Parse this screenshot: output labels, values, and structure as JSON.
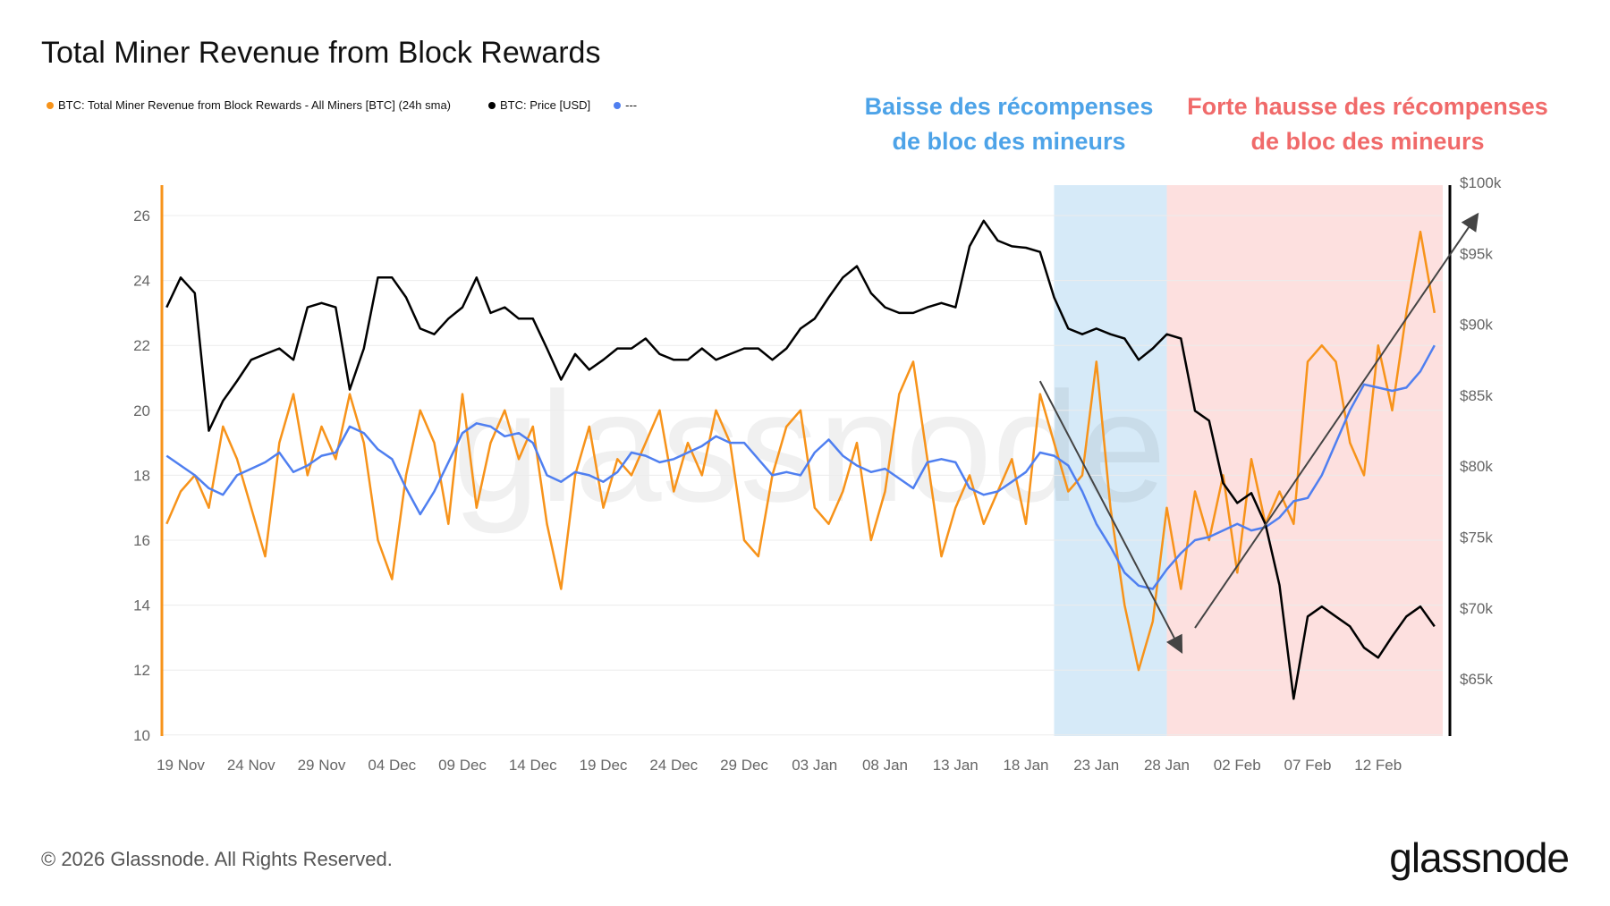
{
  "chart_data": {
    "type": "line",
    "title": "Total Miner Revenue from Block Rewards",
    "legend_placement": "top-left",
    "grid": true,
    "x": [
      "2025-11-18",
      "2025-11-19",
      "2025-11-20",
      "2025-11-21",
      "2025-11-22",
      "2025-11-23",
      "2025-11-24",
      "2025-11-25",
      "2025-11-26",
      "2025-11-27",
      "2025-11-28",
      "2025-11-29",
      "2025-11-30",
      "2025-12-01",
      "2025-12-02",
      "2025-12-03",
      "2025-12-04",
      "2025-12-05",
      "2025-12-06",
      "2025-12-07",
      "2025-12-08",
      "2025-12-09",
      "2025-12-10",
      "2025-12-11",
      "2025-12-12",
      "2025-12-13",
      "2025-12-14",
      "2025-12-15",
      "2025-12-16",
      "2025-12-17",
      "2025-12-18",
      "2025-12-19",
      "2025-12-20",
      "2025-12-21",
      "2025-12-22",
      "2025-12-23",
      "2025-12-24",
      "2025-12-25",
      "2025-12-26",
      "2025-12-27",
      "2025-12-28",
      "2025-12-29",
      "2025-12-30",
      "2025-12-31",
      "2026-01-01",
      "2026-01-02",
      "2026-01-03",
      "2026-01-04",
      "2026-01-05",
      "2026-01-06",
      "2026-01-07",
      "2026-01-08",
      "2026-01-09",
      "2026-01-10",
      "2026-01-11",
      "2026-01-12",
      "2026-01-13",
      "2026-01-14",
      "2026-01-15",
      "2026-01-16",
      "2026-01-17",
      "2026-01-18",
      "2026-01-19",
      "2026-01-20",
      "2026-01-21",
      "2026-01-22",
      "2026-01-23",
      "2026-01-24",
      "2026-01-25",
      "2026-01-26",
      "2026-01-27",
      "2026-01-28",
      "2026-01-29",
      "2026-01-30",
      "2026-01-31",
      "2026-02-01",
      "2026-02-02",
      "2026-02-03",
      "2026-02-04",
      "2026-02-05",
      "2026-02-06",
      "2026-02-07",
      "2026-02-08",
      "2026-02-09",
      "2026-02-10",
      "2026-02-11",
      "2026-02-12",
      "2026-02-13",
      "2026-02-14",
      "2026-02-15",
      "2026-02-16"
    ],
    "x_range": [
      "2025-11-17",
      "2026-02-17"
    ],
    "x_ticks": [
      {
        "date": "2025-11-19",
        "label": "19 Nov"
      },
      {
        "date": "2025-11-24",
        "label": "24 Nov"
      },
      {
        "date": "2025-11-29",
        "label": "29 Nov"
      },
      {
        "date": "2025-12-04",
        "label": "04 Dec"
      },
      {
        "date": "2025-12-09",
        "label": "09 Dec"
      },
      {
        "date": "2025-12-14",
        "label": "14 Dec"
      },
      {
        "date": "2025-12-19",
        "label": "19 Dec"
      },
      {
        "date": "2025-12-24",
        "label": "24 Dec"
      },
      {
        "date": "2025-12-29",
        "label": "29 Dec"
      },
      {
        "date": "2026-01-03",
        "label": "03 Jan"
      },
      {
        "date": "2026-01-08",
        "label": "08 Jan"
      },
      {
        "date": "2026-01-13",
        "label": "13 Jan"
      },
      {
        "date": "2026-01-18",
        "label": "18 Jan"
      },
      {
        "date": "2026-01-23",
        "label": "23 Jan"
      },
      {
        "date": "2026-01-28",
        "label": "28 Jan"
      },
      {
        "date": "2026-02-02",
        "label": "02 Feb"
      },
      {
        "date": "2026-02-07",
        "label": "07 Feb"
      },
      {
        "date": "2026-02-12",
        "label": "12 Feb"
      }
    ],
    "y_left": {
      "range": [
        10,
        26.95
      ],
      "ticks": [
        10,
        12,
        14,
        16,
        18,
        20,
        22,
        24,
        26
      ],
      "tick_labels": [
        "10",
        "12",
        "14",
        "16",
        "18",
        "20",
        "22",
        "24",
        "26"
      ],
      "color": "#f7931a"
    },
    "y_right": {
      "range": [
        61.9,
        100
      ],
      "ticks": [
        65,
        70,
        75,
        80,
        85,
        90,
        95,
        100
      ],
      "tick_labels": [
        "$65k",
        "$70k",
        "$75k",
        "$80k",
        "$85k",
        "$90k",
        "$95k",
        "$100k"
      ],
      "unit": "USD thousands",
      "color": "#000000"
    },
    "series": [
      {
        "name": "BTC: Total Miner Revenue from Block Rewards - All Miners [BTC] (24h sma)",
        "axis": "left",
        "color": "#f7931a",
        "values": [
          16.5,
          17.5,
          18,
          17,
          19.5,
          18.5,
          17,
          15.5,
          19,
          20.5,
          18,
          19.5,
          18.5,
          20.5,
          19,
          16,
          14.8,
          18,
          20,
          19,
          16.5,
          20.5,
          17,
          19,
          20,
          18.5,
          19.5,
          16.5,
          14.5,
          18,
          19.5,
          17,
          18.5,
          18,
          19,
          20,
          17.5,
          19,
          18,
          20,
          19,
          16,
          15.5,
          18,
          19.5,
          20,
          17,
          16.5,
          17.5,
          19,
          16,
          17.5,
          20.5,
          21.5,
          18.5,
          15.5,
          17,
          18,
          16.5,
          17.5,
          18.5,
          16.5,
          20.5,
          19,
          17.5,
          18,
          21.5,
          17,
          14,
          12,
          13.5,
          17,
          14.5,
          17.5,
          16,
          18,
          15,
          18.5,
          16.5,
          17.5,
          16.5,
          21.5,
          22,
          21.5,
          19,
          18,
          22,
          20,
          23,
          25.5,
          23
        ]
      },
      {
        "name": "BTC: Price [USD]",
        "axis": "right",
        "color": "#000000",
        "values": [
          91.2,
          93.3,
          92.2,
          82.5,
          84.6,
          86,
          87.5,
          87.9,
          88.3,
          87.5,
          91.2,
          91.5,
          91.2,
          85.4,
          88.3,
          93.3,
          93.3,
          91.9,
          89.7,
          89.3,
          90.4,
          91.2,
          93.3,
          90.8,
          91.2,
          90.4,
          90.4,
          88.3,
          86.1,
          87.9,
          86.8,
          87.5,
          88.3,
          88.3,
          89,
          87.9,
          87.5,
          87.5,
          88.3,
          87.5,
          87.9,
          88.3,
          88.3,
          87.5,
          88.3,
          89.7,
          90.4,
          91.9,
          93.3,
          94.1,
          92.2,
          91.2,
          90.8,
          90.8,
          91.2,
          91.5,
          91.2,
          95.5,
          97.3,
          95.9,
          95.5,
          95.4,
          95.1,
          91.9,
          89.7,
          89.3,
          89.7,
          89.3,
          89,
          87.5,
          88.3,
          89.3,
          89,
          83.9,
          83.2,
          78.8,
          77.4,
          78.1,
          75.9,
          71.6,
          63.6,
          69.4,
          70.1,
          69.4,
          68.7,
          67.2,
          66.5,
          68,
          69.4,
          70.1,
          68.7
        ]
      },
      {
        "name": "---",
        "axis": "left",
        "color": "#4f7ff0",
        "values": [
          18.6,
          18.3,
          18,
          17.6,
          17.4,
          18,
          18.2,
          18.4,
          18.7,
          18.1,
          18.3,
          18.6,
          18.7,
          19.5,
          19.3,
          18.8,
          18.5,
          17.6,
          16.8,
          17.5,
          18.4,
          19.3,
          19.6,
          19.5,
          19.2,
          19.3,
          19.0,
          18.0,
          17.8,
          18.1,
          18.0,
          17.8,
          18.1,
          18.7,
          18.6,
          18.4,
          18.5,
          18.7,
          18.9,
          19.2,
          19.0,
          19.0,
          18.5,
          18.0,
          18.1,
          18.0,
          18.7,
          19.1,
          18.6,
          18.3,
          18.1,
          18.2,
          17.9,
          17.6,
          18.4,
          18.5,
          18.4,
          17.6,
          17.4,
          17.5,
          17.8,
          18.1,
          18.7,
          18.6,
          18.3,
          17.5,
          16.5,
          15.8,
          15.0,
          14.6,
          14.5,
          15.1,
          15.6,
          16.0,
          16.1,
          16.3,
          16.5,
          16.3,
          16.4,
          16.7,
          17.2,
          17.3,
          18.0,
          19.0,
          20.0,
          20.8,
          20.7,
          20.6,
          20.7,
          21.2,
          22.0
        ]
      }
    ],
    "regions": [
      {
        "from": "2026-01-20",
        "to": "2026-01-28",
        "color": "#d6eaf8",
        "label": "Baisse des récompenses de bloc des mineurs"
      },
      {
        "from": "2026-01-28",
        "to": "2026-02-16",
        "color": "#fde0df",
        "label": "Forte hausse des récompenses de bloc des mineurs"
      }
    ],
    "arrows": [
      {
        "from": {
          "date": "2026-01-19",
          "value": 20.9
        },
        "to": {
          "date": "2026-01-29",
          "value": 12.6
        },
        "axis": "left",
        "color": "#444444"
      },
      {
        "from": {
          "date": "2026-01-30",
          "value": 13.3
        },
        "to": {
          "date": "2026-02-19",
          "value": 26.0
        },
        "axis": "left",
        "color": "#444444"
      }
    ]
  },
  "annotations": {
    "blue": {
      "line1": "Baisse des récompenses",
      "line2": "de bloc des mineurs",
      "color": "#4da3e8"
    },
    "red": {
      "line1": "Forte hausse des récompenses",
      "line2": "de bloc des mineurs",
      "color": "#f06a6a"
    }
  },
  "watermark": "glassnode",
  "footer": {
    "copyright": "© 2026 Glassnode. All Rights Reserved.",
    "logo": "glassnode"
  }
}
